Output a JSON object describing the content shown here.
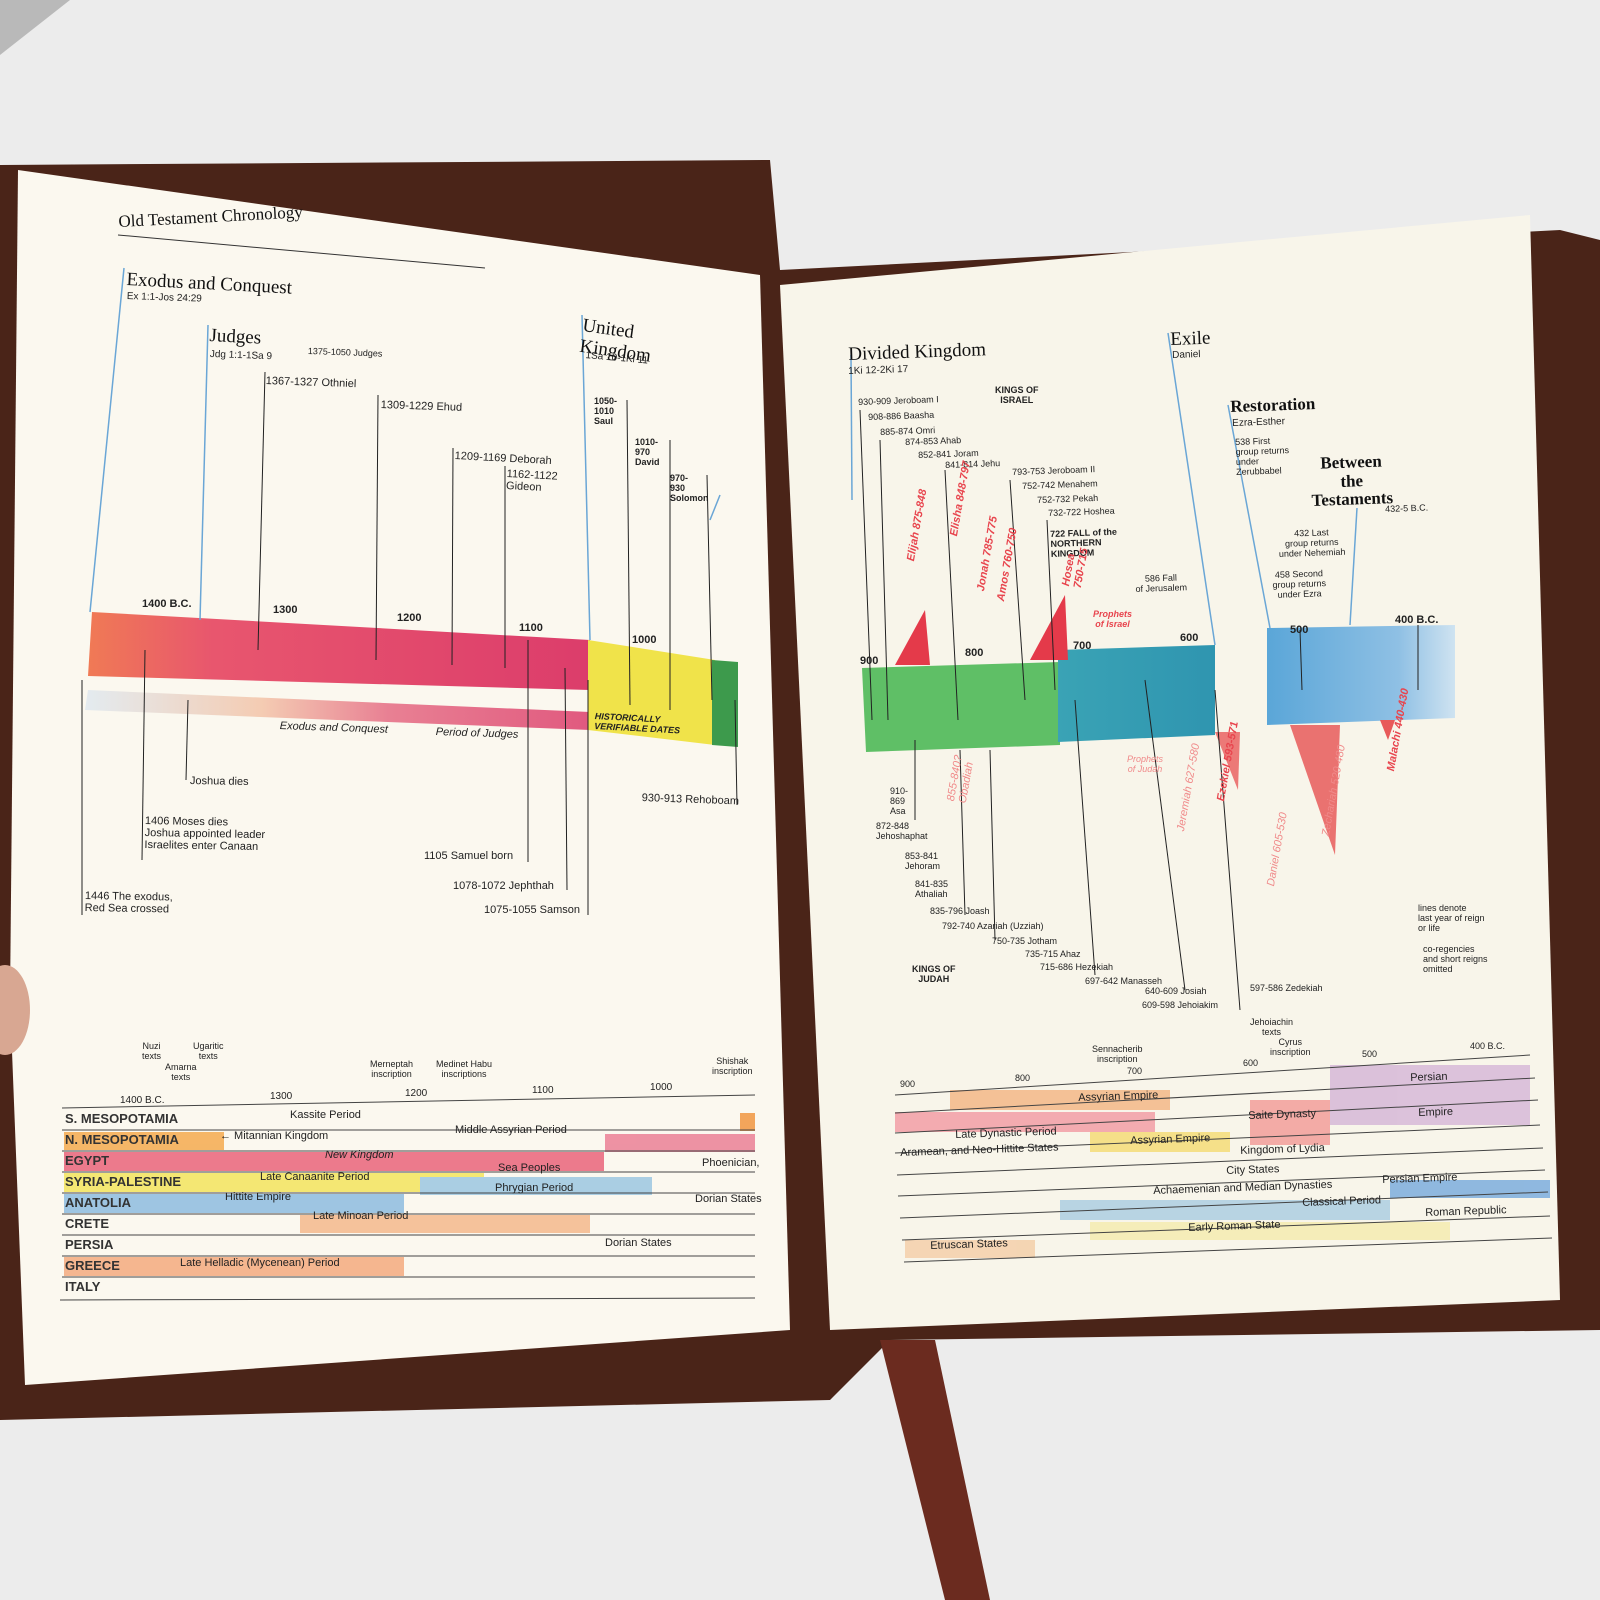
{
  "left_page": {
    "title": "Old Testament Chronology",
    "sections": [
      {
        "title": "Exodus and Conquest",
        "ref": "Ex 1:1-Jos 24:29"
      },
      {
        "title": "Judges",
        "ref": "Jdg 1:1-1Sa 9"
      },
      {
        "title": "United\nKingdom",
        "ref": "1Sa 10-1Ki 11"
      }
    ],
    "events": [
      "1375-1050 Judges",
      "1367-1327 Othniel",
      "1309-1229 Ehud",
      "1209-1169 Deborah",
      "1162-1122\nGideon",
      "1050-\n1010\nSaul",
      "1010-\n970\nDavid",
      "970-\n930\nSolomon",
      "930-913 Rehoboam",
      "Joshua dies",
      "1406 Moses dies\nJoshua appointed leader\nIsraelites enter Canaan",
      "1446 The exodus,\nRed Sea crossed",
      "1105  Samuel born",
      "1078-1072 Jephthah",
      "1075-1055 Samson"
    ],
    "scale": [
      "1400 B.C.",
      "1300",
      "1200",
      "1100",
      "1000"
    ],
    "band_labels": [
      "Exodus and Conquest",
      "Period of Judges",
      "HISTORICALLY\nVERIFIABLE DATES"
    ],
    "lower_notes": [
      "Nuzi\ntexts",
      "Amarna\ntexts",
      "Ugaritic\ntexts",
      "Merneptah\ninscription",
      "Medinet Habu\ninscriptions",
      "Shishak\ninscription"
    ],
    "lower_scale": [
      "1400 B.C.",
      "1300",
      "1200",
      "1100",
      "1000"
    ],
    "regions": [
      "S. MESOPOTAMIA",
      "N. MESOPOTAMIA",
      "EGYPT",
      "SYRIA-PALESTINE",
      "ANATOLIA",
      "CRETE",
      "PERSIA",
      "GREECE",
      "ITALY"
    ],
    "periods": [
      "Kassite Period",
      "← Mitannian Kingdom",
      "Middle Assyrian Period",
      "New Kingdom",
      "Phoenician,",
      "Sea Peoples",
      "Late Canaanite Period",
      "Phrygian Period",
      "Hittite Empire",
      "Dorian States",
      "Late Minoan Period",
      "Dorian States",
      "Late Helladic (Mycenean) Period"
    ]
  },
  "right_page": {
    "sections": [
      {
        "title": "Divided Kingdom",
        "ref": "1Ki 12-2Ki 17"
      },
      {
        "title": "Exile",
        "ref": "Daniel"
      },
      {
        "title": "Restoration",
        "ref": "Ezra-Esther"
      },
      {
        "title": "Between\nthe\nTestaments",
        "ref": "432-5 B.C."
      }
    ],
    "israel_heading": "KINGS OF\nISRAEL",
    "israel_kings": [
      "930-909 Jeroboam I",
      "908-886 Baasha",
      "885-874 Omri",
      "874-853 Ahab",
      "852-841 Joram",
      "841-814 Jehu",
      "793-753 Jeroboam II",
      "752-742 Menahem",
      "752-732 Pekah",
      "732-722 Hoshea",
      "722 FALL of the\nNORTHERN\nKINGDOM"
    ],
    "restoration_events": [
      "538 First\ngroup returns\nunder\nZerubbabel",
      "432 Last\ngroup returns\nunder Nehemiah",
      "458 Second\ngroup returns\nunder Ezra",
      "586 Fall\nof Jerusalem"
    ],
    "prophets": [
      "Elijah 875-848",
      "Elisha 848-797",
      "Jonah 785-775",
      "Amos 760-750",
      "Hosea\n750-715",
      "Prophets\nof Israel",
      "Prophets\nof Judah",
      "855-840?\nObadiah",
      "Jeremiah 627-580",
      "Ezekiel 593-571",
      "Daniel 605-530",
      "Zechariah 520-480",
      "Malachi 440-430"
    ],
    "scale": [
      "900",
      "800",
      "700",
      "600",
      "500",
      "400 B.C."
    ],
    "judah_heading": "KINGS OF\nJUDAH",
    "judah_kings": [
      "910-\n869\nAsa",
      "872-848\nJehoshaphat",
      "853-841\nJehoram",
      "841-835\nAthaliah",
      "835-796 Joash",
      "792-740 Azariah (Uzziah)",
      "750-735 Jotham",
      "735-715 Ahaz",
      "715-686 Hezekiah",
      "697-642 Manasseh",
      "640-609 Josiah",
      "609-598 Jehoiakim",
      "597-586 Zedekiah"
    ],
    "notes": [
      "lines denote\nlast year of reign\nor life",
      "co-regencies\nand short reigns\nomitted"
    ],
    "lower_notes": [
      "Sennacherib\ninscription",
      "Jehoiachin\ntexts",
      "Cyrus\ninscription"
    ],
    "lower_scale": [
      "900",
      "800",
      "700",
      "600",
      "500",
      "400 B.C."
    ],
    "periods": [
      "Persian",
      "Assyrian Empire",
      "Empire",
      "Saite Dynasty",
      "Late Dynastic Period",
      "Assyrian Empire",
      "Aramean, and Neo-Hittite States",
      "Kingdom of Lydia",
      "City States",
      "Persian Empire",
      "Achaemenian and Median Dynasties",
      "Classical Period",
      "Roman Republic",
      "Early Roman State",
      "Etruscan States"
    ]
  }
}
